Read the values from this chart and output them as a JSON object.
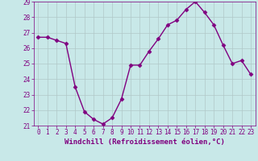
{
  "x": [
    0,
    1,
    2,
    3,
    4,
    5,
    6,
    7,
    8,
    9,
    10,
    11,
    12,
    13,
    14,
    15,
    16,
    17,
    18,
    19,
    20,
    21,
    22,
    23
  ],
  "y": [
    26.7,
    26.7,
    26.5,
    26.3,
    23.5,
    21.9,
    21.4,
    21.1,
    21.5,
    22.7,
    24.9,
    24.9,
    25.8,
    26.6,
    27.5,
    27.8,
    28.5,
    29.0,
    28.3,
    27.5,
    26.2,
    25.0,
    25.2,
    24.3
  ],
  "line_color": "#800080",
  "marker": "D",
  "marker_size": 2.5,
  "bg_color": "#c8e8e8",
  "grid_color": "#b0c8c8",
  "xlabel": "Windchill (Refroidissement éolien,°C)",
  "xlabel_color": "#800080",
  "ylim": [
    21,
    29
  ],
  "xlim_min": -0.5,
  "xlim_max": 23.5,
  "yticks": [
    21,
    22,
    23,
    24,
    25,
    26,
    27,
    28,
    29
  ],
  "xticks": [
    0,
    1,
    2,
    3,
    4,
    5,
    6,
    7,
    8,
    9,
    10,
    11,
    12,
    13,
    14,
    15,
    16,
    17,
    18,
    19,
    20,
    21,
    22,
    23
  ],
  "tick_color": "#800080",
  "tick_fontsize": 5.5,
  "xlabel_fontsize": 6.5,
  "linewidth": 1.0
}
